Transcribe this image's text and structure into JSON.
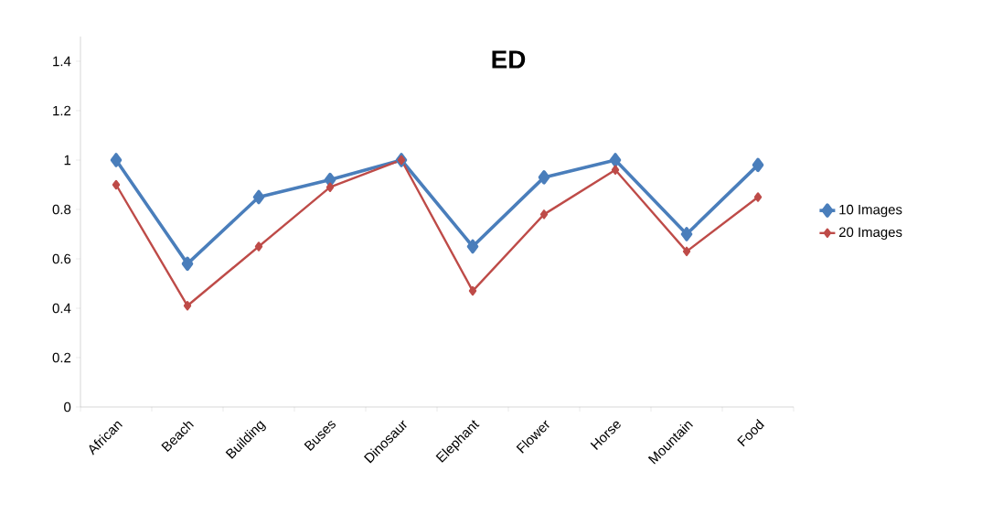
{
  "chart_data": {
    "type": "line",
    "title": "ED",
    "categories": [
      "African",
      "Beach",
      "Building",
      "Buses",
      "Dinosaur",
      "Elephant",
      "Flower",
      "Horse",
      "Mountain",
      "Food"
    ],
    "series": [
      {
        "name": "10 Images",
        "color": "#4a7ebb",
        "values": [
          1.0,
          0.58,
          0.85,
          0.92,
          1.0,
          0.65,
          0.93,
          1.0,
          0.7,
          0.98
        ]
      },
      {
        "name": "20 Images",
        "color": "#be4b48",
        "values": [
          0.9,
          0.41,
          0.65,
          0.89,
          1.0,
          0.47,
          0.78,
          0.96,
          0.63,
          0.85
        ]
      }
    ],
    "ylim": [
      0,
      1.5
    ],
    "yticks": [
      0,
      0.2,
      0.4,
      0.6,
      0.8,
      1,
      1.2,
      1.4
    ],
    "grid": false,
    "legend": "right",
    "marker": "diamond",
    "line_style": "solid"
  }
}
